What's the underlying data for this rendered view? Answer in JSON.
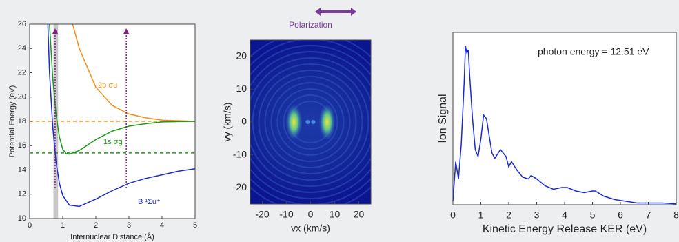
{
  "chart_data": [
    {
      "type": "line",
      "xlabel": "Internuclear Distance (Å)",
      "ylabel": "Potential Energy (eV)",
      "xlim": [
        0,
        5
      ],
      "ylim": [
        10,
        26
      ],
      "xticks": [
        0,
        1,
        2,
        3,
        4,
        5
      ],
      "yticks": [
        10,
        12,
        14,
        16,
        18,
        20,
        22,
        24,
        26
      ],
      "band": [
        0.72,
        0.86
      ],
      "band_color": "#c8c8c8",
      "hlines": [
        {
          "value": 18.0,
          "color": "#f0901e"
        },
        {
          "value": 15.4,
          "color": "#1a9a1a"
        }
      ],
      "arrows": [
        {
          "x": 0.77,
          "y": [
            12.5,
            25.6
          ]
        },
        {
          "x": 2.92,
          "y": [
            12.5,
            25.6
          ]
        }
      ],
      "arrow_color": "#8a1a8a",
      "series": [
        {
          "name": "2p σu",
          "color": "#f0901e",
          "x": [
            1.3,
            1.5,
            2,
            2.5,
            3,
            3.5,
            4,
            5
          ],
          "values": [
            26,
            24,
            20.8,
            19.3,
            18.6,
            18.3,
            18.1,
            18.0
          ]
        },
        {
          "name": "1s σg",
          "color": "#1a9a1a",
          "x": [
            0.6,
            0.7,
            0.8,
            0.9,
            1.0,
            1.1,
            1.2,
            1.5,
            2,
            2.5,
            3,
            3.5,
            4,
            5
          ],
          "values": [
            26,
            21.5,
            18.5,
            16.7,
            15.7,
            15.35,
            15.3,
            15.6,
            16.5,
            17.2,
            17.6,
            17.8,
            17.95,
            18.0
          ]
        },
        {
          "name": "B ¹Σu⁺",
          "color": "#1a2ad0",
          "x": [
            0.55,
            0.6,
            0.7,
            0.8,
            0.9,
            1.0,
            1.2,
            1.5,
            2,
            2.5,
            3,
            3.5,
            4,
            4.5,
            5
          ],
          "values": [
            26,
            22,
            17.5,
            14.6,
            12.9,
            11.9,
            11.1,
            11.0,
            11.6,
            12.3,
            12.9,
            13.3,
            13.6,
            13.9,
            14.1
          ]
        }
      ]
    },
    {
      "type": "image",
      "title": "Polarization",
      "xlabel": "vx (km/s)",
      "ylabel": "vy (km/s)",
      "xlim": [
        -25,
        25
      ],
      "ylim": [
        -25,
        25
      ],
      "xticks": [
        -20,
        -10,
        0,
        10,
        20
      ],
      "yticks": [
        -20,
        -10,
        0,
        10,
        20
      ]
    },
    {
      "type": "line",
      "xlabel": "Kinetic Energy Release KER (eV)",
      "ylabel": "Ion Signal",
      "annotation": "photon energy = 12.51 eV",
      "xlim": [
        0,
        8
      ],
      "ylim": [
        0,
        1
      ],
      "xticks": [
        0,
        1,
        2,
        3,
        4,
        5,
        6,
        7,
        8
      ],
      "series": [
        {
          "color": "#1a2ad0",
          "x": [
            0,
            0.1,
            0.2,
            0.3,
            0.4,
            0.45,
            0.5,
            0.55,
            0.6,
            0.7,
            0.8,
            0.9,
            1.0,
            1.1,
            1.2,
            1.3,
            1.4,
            1.5,
            1.7,
            1.9,
            2.0,
            2.1,
            2.3,
            2.5,
            2.7,
            2.8,
            3.0,
            3.3,
            3.6,
            3.9,
            4.1,
            4.4,
            4.7,
            5.0,
            5.1,
            5.4,
            5.8,
            6.2,
            6.6,
            7,
            7.5,
            8
          ],
          "values": [
            0.02,
            0.25,
            0.15,
            0.35,
            0.7,
            0.92,
            0.88,
            0.9,
            0.75,
            0.5,
            0.32,
            0.28,
            0.38,
            0.52,
            0.5,
            0.4,
            0.3,
            0.27,
            0.32,
            0.28,
            0.22,
            0.25,
            0.2,
            0.16,
            0.15,
            0.17,
            0.15,
            0.11,
            0.09,
            0.1,
            0.1,
            0.08,
            0.07,
            0.08,
            0.08,
            0.05,
            0.03,
            0.02,
            0.01,
            0.01,
            0.01,
            0.005
          ]
        }
      ]
    }
  ]
}
